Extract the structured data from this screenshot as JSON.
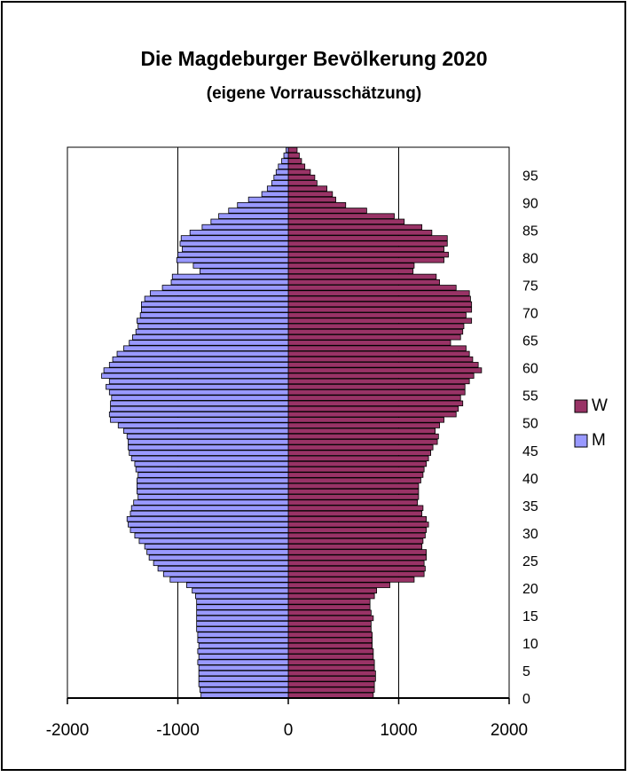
{
  "chart_data": {
    "type": "pyramid",
    "title": "Die Magdeburger Bevölkerung  2020",
    "subtitle": "(eigene Vorrausschätzung)",
    "categories": [
      "0",
      null,
      null,
      null,
      null,
      "5",
      null,
      null,
      null,
      null,
      "10",
      null,
      null,
      null,
      null,
      "15",
      null,
      null,
      null,
      null,
      "20",
      null,
      null,
      null,
      null,
      "25",
      null,
      null,
      null,
      null,
      "30",
      null,
      null,
      null,
      null,
      "35",
      null,
      null,
      null,
      null,
      "40",
      null,
      null,
      null,
      null,
      "45",
      null,
      null,
      null,
      null,
      "50",
      null,
      null,
      null,
      null,
      "55",
      null,
      null,
      null,
      null,
      "60",
      null,
      null,
      null,
      null,
      "65",
      null,
      null,
      null,
      null,
      "70",
      null,
      null,
      null,
      null,
      "75",
      null,
      null,
      null,
      null,
      "80",
      null,
      null,
      null,
      null,
      "85",
      null,
      null,
      null,
      null,
      "90",
      null,
      null,
      null,
      null,
      "95",
      null,
      null,
      null,
      null
    ],
    "series": [
      {
        "name": "W",
        "color": "#993366",
        "values": [
          770,
          780,
          780,
          790,
          790,
          780,
          780,
          770,
          770,
          760,
          760,
          760,
          750,
          750,
          770,
          750,
          740,
          740,
          780,
          800,
          920,
          1140,
          1230,
          1240,
          1230,
          1250,
          1250,
          1210,
          1220,
          1240,
          1250,
          1270,
          1250,
          1210,
          1220,
          1170,
          1180,
          1180,
          1180,
          1200,
          1220,
          1230,
          1250,
          1270,
          1290,
          1310,
          1350,
          1360,
          1330,
          1370,
          1410,
          1520,
          1540,
          1580,
          1560,
          1600,
          1600,
          1640,
          1680,
          1750,
          1720,
          1670,
          1640,
          1610,
          1470,
          1560,
          1580,
          1590,
          1660,
          1610,
          1660,
          1660,
          1650,
          1640,
          1520,
          1370,
          1340,
          1130,
          1140,
          1410,
          1450,
          1410,
          1440,
          1440,
          1300,
          1210,
          1050,
          960,
          710,
          520,
          430,
          400,
          350,
          260,
          240,
          200,
          150,
          120,
          100,
          80
        ]
      },
      {
        "name": "M",
        "color": "#9999ff",
        "values": [
          -790,
          -800,
          -810,
          -810,
          -810,
          -810,
          -820,
          -810,
          -820,
          -810,
          -820,
          -820,
          -830,
          -830,
          -830,
          -830,
          -830,
          -830,
          -840,
          -870,
          -920,
          -1070,
          -1130,
          -1180,
          -1220,
          -1260,
          -1280,
          -1300,
          -1350,
          -1390,
          -1430,
          -1450,
          -1460,
          -1430,
          -1420,
          -1400,
          -1360,
          -1370,
          -1370,
          -1370,
          -1360,
          -1380,
          -1390,
          -1420,
          -1440,
          -1450,
          -1450,
          -1460,
          -1490,
          -1540,
          -1610,
          -1620,
          -1610,
          -1610,
          -1600,
          -1620,
          -1650,
          -1620,
          -1690,
          -1670,
          -1620,
          -1590,
          -1550,
          -1490,
          -1440,
          -1410,
          -1380,
          -1360,
          -1370,
          -1340,
          -1330,
          -1330,
          -1300,
          -1250,
          -1140,
          -1060,
          -1050,
          -800,
          -860,
          -1010,
          -1000,
          -960,
          -980,
          -970,
          -890,
          -780,
          -700,
          -630,
          -540,
          -460,
          -360,
          -240,
          -190,
          -150,
          -130,
          -110,
          -90,
          -60,
          -40,
          -20
        ]
      }
    ],
    "xlim": [
      -2000,
      2000
    ],
    "xticks": [
      -2000,
      -1000,
      0,
      1000,
      2000
    ],
    "grid": true,
    "legend": "right"
  }
}
